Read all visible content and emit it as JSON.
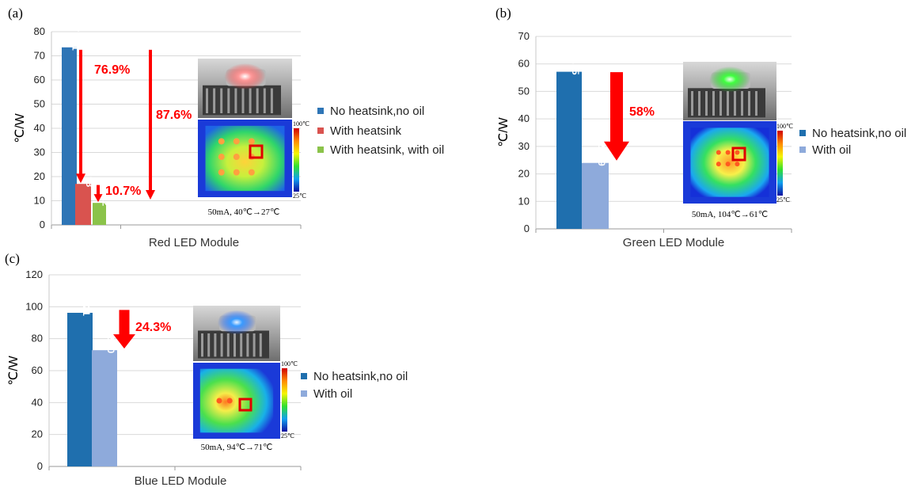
{
  "colors": {
    "blue": "#2e75b6",
    "red": "#d9534f",
    "green": "#8bc34a",
    "darkblue": "#1f6fae",
    "lightblue": "#8eaadb",
    "arrow": "#ff0000"
  },
  "chart_data": [
    {
      "type": "bar",
      "panel_label": "(a)",
      "ylabel": "℃/W",
      "xlabel": "Red LED Module",
      "ylim": [
        0,
        80
      ],
      "yticks": [
        0,
        10,
        20,
        30,
        40,
        50,
        60,
        70,
        80
      ],
      "grid": true,
      "legend_position": "right",
      "series": [
        {
          "name": "No heatsink,no oil",
          "value": 73.51,
          "label": "73.51",
          "color": "#2e75b6"
        },
        {
          "name": "With heatsink",
          "value": 16.98,
          "label": "16.98",
          "color": "#d9534f"
        },
        {
          "name": "With heatsink, with oil",
          "value": 9.12,
          "label": "9.12",
          "color": "#8bc34a"
        }
      ],
      "annotations": [
        "76.9%",
        "10.7%",
        "87.6%"
      ],
      "photo_caption": "50mA, 40℃→27℃",
      "scale_max": "100℃",
      "scale_min": "25℃"
    },
    {
      "type": "bar",
      "panel_label": "(b)",
      "ylabel": "℃/W",
      "xlabel": "Green LED Module",
      "ylim": [
        0,
        70
      ],
      "yticks": [
        0,
        10,
        20,
        30,
        40,
        50,
        60,
        70
      ],
      "grid": true,
      "legend_position": "right",
      "series": [
        {
          "name": "No heatsink,no oil",
          "value": 57.15,
          "label": "57.15",
          "color": "#1f6fae"
        },
        {
          "name": "With oil",
          "value": 23.99,
          "label": "23.99",
          "color": "#8eaadb"
        }
      ],
      "annotations": [
        "58%"
      ],
      "photo_caption": "50mA, 104℃→61℃",
      "scale_max": "100℃",
      "scale_min": "25℃"
    },
    {
      "type": "bar",
      "panel_label": "(c)",
      "ylabel": "℃/W",
      "xlabel": "Blue LED Module",
      "ylim": [
        0,
        120
      ],
      "yticks": [
        0,
        20,
        40,
        60,
        80,
        100,
        120
      ],
      "grid": true,
      "legend_position": "right",
      "series": [
        {
          "name": "No heatsink,no oil",
          "value": 96.21,
          "label": "96.21",
          "color": "#1f6fae"
        },
        {
          "name": "With oil",
          "value": 72.8,
          "label": "72.80",
          "color": "#8eaadb"
        }
      ],
      "annotations": [
        "24.3%"
      ],
      "photo_caption": "50mA, 94℃→71℃",
      "scale_max": "100℃",
      "scale_min": "25℃"
    }
  ]
}
